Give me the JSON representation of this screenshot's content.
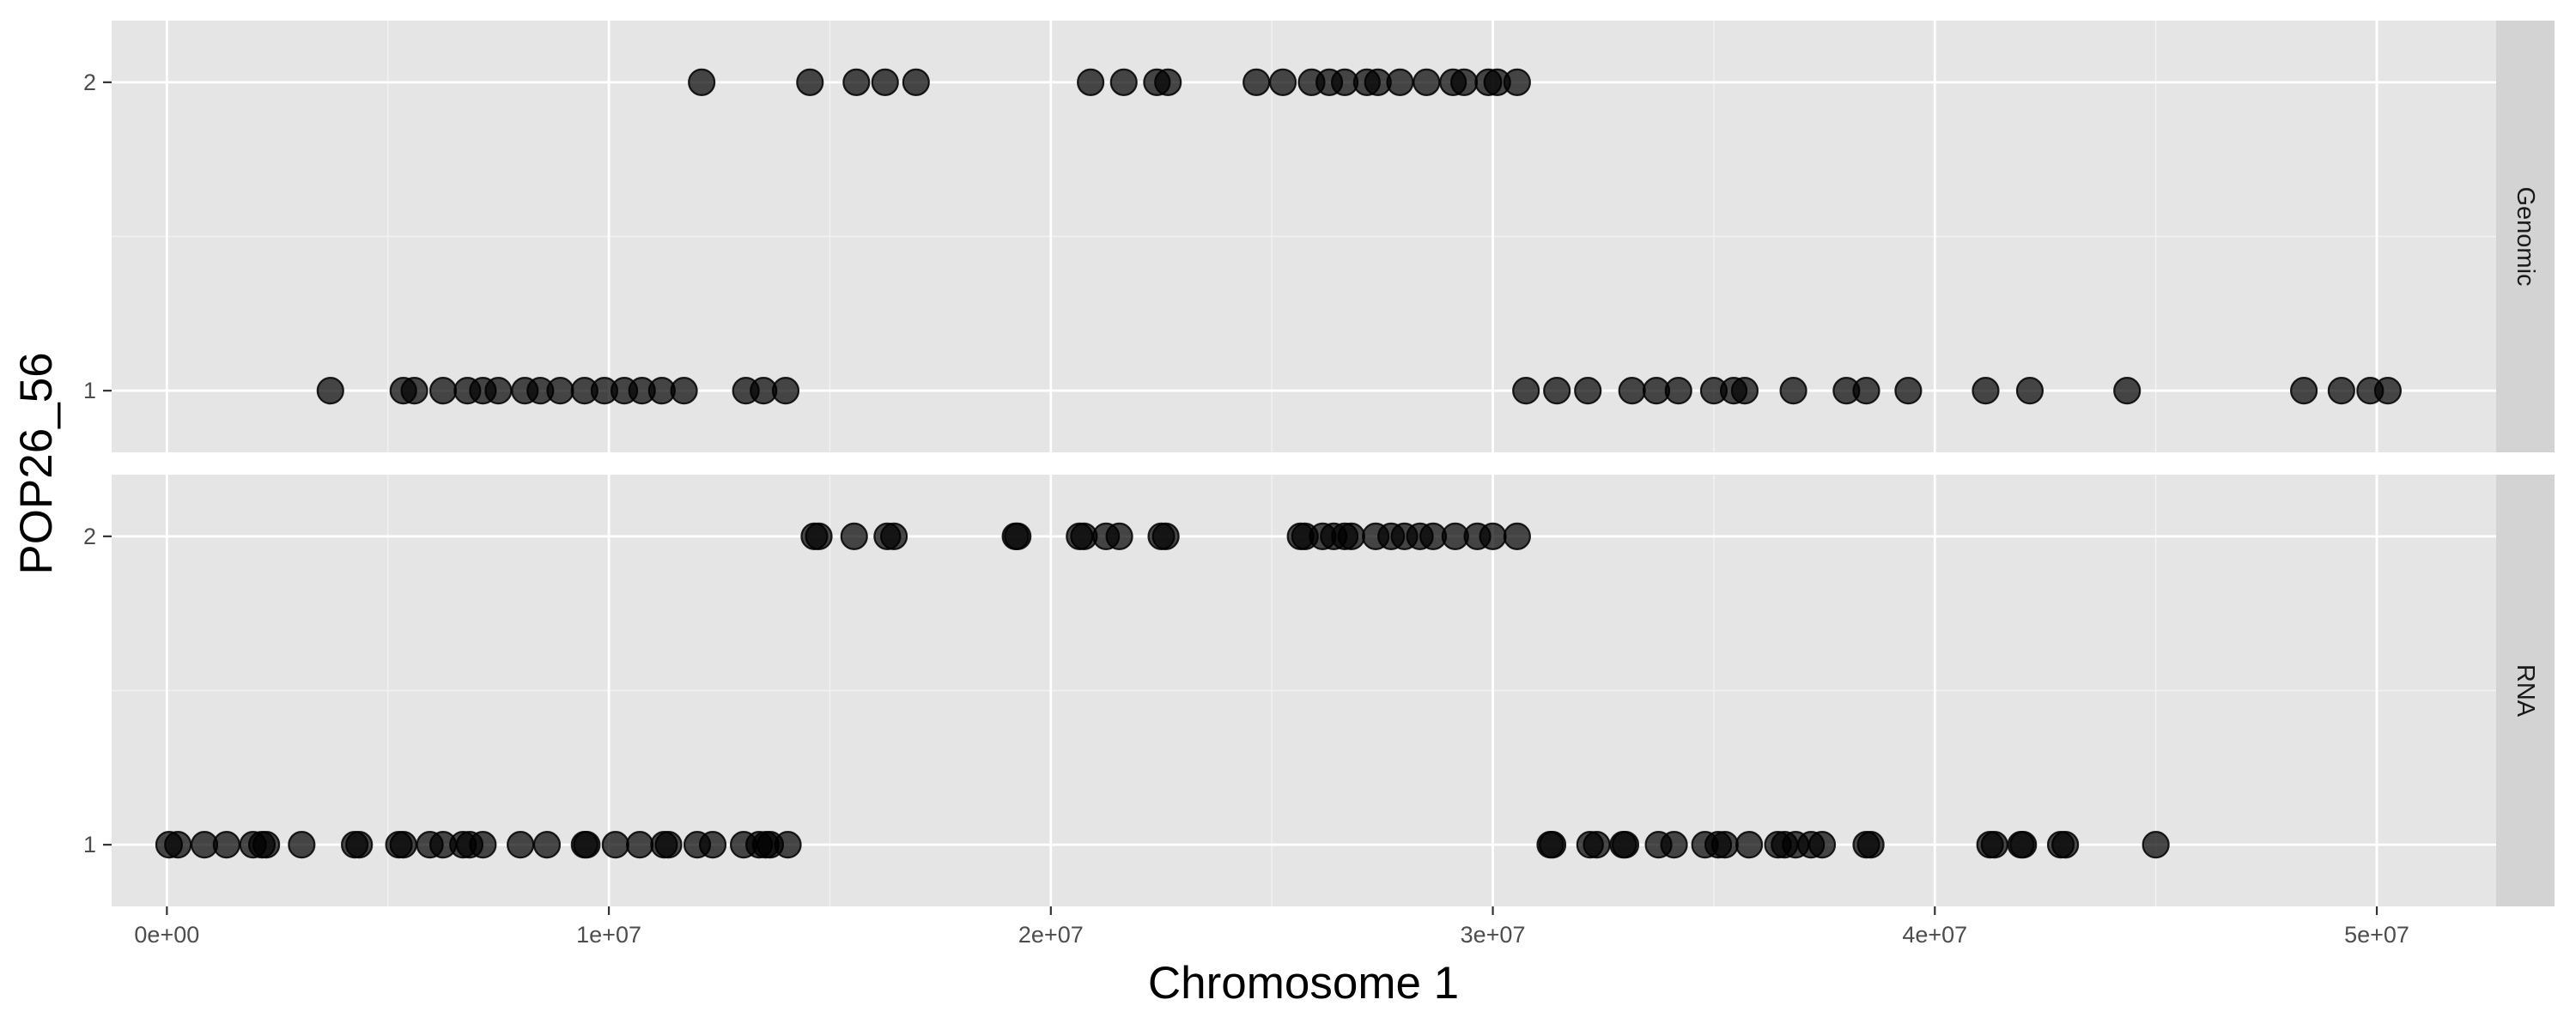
{
  "chart_data": {
    "type": "scatter",
    "xlabel": "Chromosome 1",
    "ylabel": "POP26_56",
    "xlim": [
      -1250000,
      52700000
    ],
    "ylim": [
      0.8,
      2.2
    ],
    "x_ticks": [
      0,
      10000000,
      20000000,
      30000000,
      40000000,
      50000000
    ],
    "x_tick_labels": [
      "0e+00",
      "1e+07",
      "2e+07",
      "3e+07",
      "4e+07",
      "5e+07"
    ],
    "y_ticks": [
      1,
      2
    ],
    "y_tick_labels": [
      "1",
      "2"
    ],
    "grid": true,
    "facets": [
      {
        "label": "Genomic",
        "points": [
          [
            12100000,
            2
          ],
          [
            14550000,
            2
          ],
          [
            15600000,
            2
          ],
          [
            16250000,
            2
          ],
          [
            16950000,
            2
          ],
          [
            20900000,
            2
          ],
          [
            21650000,
            2
          ],
          [
            22400000,
            2
          ],
          [
            22650000,
            2
          ],
          [
            24650000,
            2
          ],
          [
            25250000,
            2
          ],
          [
            25900000,
            2
          ],
          [
            26300000,
            2
          ],
          [
            26650000,
            2
          ],
          [
            27150000,
            2
          ],
          [
            27400000,
            2
          ],
          [
            27900000,
            2
          ],
          [
            28500000,
            2
          ],
          [
            29100000,
            2
          ],
          [
            29350000,
            2
          ],
          [
            29900000,
            2
          ],
          [
            30100000,
            2
          ],
          [
            30550000,
            2
          ],
          [
            3700000,
            1
          ],
          [
            5350000,
            1
          ],
          [
            5600000,
            1
          ],
          [
            6250000,
            1
          ],
          [
            6800000,
            1
          ],
          [
            7150000,
            1
          ],
          [
            7500000,
            1
          ],
          [
            8100000,
            1
          ],
          [
            8450000,
            1
          ],
          [
            8900000,
            1
          ],
          [
            9450000,
            1
          ],
          [
            9900000,
            1
          ],
          [
            10350000,
            1
          ],
          [
            10750000,
            1
          ],
          [
            11200000,
            1
          ],
          [
            11700000,
            1
          ],
          [
            13100000,
            1
          ],
          [
            13500000,
            1
          ],
          [
            14000000,
            1
          ],
          [
            30750000,
            1
          ],
          [
            31450000,
            1
          ],
          [
            32150000,
            1
          ],
          [
            33150000,
            1
          ],
          [
            33700000,
            1
          ],
          [
            34200000,
            1
          ],
          [
            35000000,
            1
          ],
          [
            35450000,
            1
          ],
          [
            35700000,
            1
          ],
          [
            36800000,
            1
          ],
          [
            38000000,
            1
          ],
          [
            38450000,
            1
          ],
          [
            39400000,
            1
          ],
          [
            41150000,
            1
          ],
          [
            42150000,
            1
          ],
          [
            44350000,
            1
          ],
          [
            48350000,
            1
          ],
          [
            49200000,
            1
          ],
          [
            49850000,
            1
          ],
          [
            50250000,
            1
          ]
        ]
      },
      {
        "label": "RNA",
        "points": [
          [
            14650000,
            2
          ],
          [
            14750000,
            2
          ],
          [
            15550000,
            2
          ],
          [
            16300000,
            2
          ],
          [
            16450000,
            2
          ],
          [
            19200000,
            2
          ],
          [
            19250000,
            2
          ],
          [
            20650000,
            2
          ],
          [
            20750000,
            2
          ],
          [
            21250000,
            2
          ],
          [
            21550000,
            2
          ],
          [
            22500000,
            2
          ],
          [
            22600000,
            2
          ],
          [
            25650000,
            2
          ],
          [
            25750000,
            2
          ],
          [
            26150000,
            2
          ],
          [
            26400000,
            2
          ],
          [
            26650000,
            2
          ],
          [
            26800000,
            2
          ],
          [
            27350000,
            2
          ],
          [
            27700000,
            2
          ],
          [
            28000000,
            2
          ],
          [
            28350000,
            2
          ],
          [
            28650000,
            2
          ],
          [
            29150000,
            2
          ],
          [
            29650000,
            2
          ],
          [
            30000000,
            2
          ],
          [
            30550000,
            2
          ],
          [
            50000,
            1
          ],
          [
            250000,
            1
          ],
          [
            850000,
            1
          ],
          [
            1350000,
            1
          ],
          [
            1950000,
            1
          ],
          [
            2150000,
            1
          ],
          [
            2250000,
            1
          ],
          [
            3050000,
            1
          ],
          [
            4250000,
            1
          ],
          [
            4350000,
            1
          ],
          [
            5250000,
            1
          ],
          [
            5350000,
            1
          ],
          [
            5950000,
            1
          ],
          [
            6250000,
            1
          ],
          [
            6700000,
            1
          ],
          [
            6850000,
            1
          ],
          [
            7150000,
            1
          ],
          [
            8000000,
            1
          ],
          [
            8600000,
            1
          ],
          [
            9450000,
            1
          ],
          [
            9500000,
            1
          ],
          [
            10150000,
            1
          ],
          [
            10700000,
            1
          ],
          [
            11250000,
            1
          ],
          [
            11350000,
            1
          ],
          [
            12000000,
            1
          ],
          [
            12350000,
            1
          ],
          [
            13050000,
            1
          ],
          [
            13400000,
            1
          ],
          [
            13550000,
            1
          ],
          [
            13650000,
            1
          ],
          [
            14050000,
            1
          ],
          [
            31300000,
            1
          ],
          [
            31350000,
            1
          ],
          [
            32200000,
            1
          ],
          [
            32350000,
            1
          ],
          [
            32950000,
            1
          ],
          [
            33000000,
            1
          ],
          [
            33750000,
            1
          ],
          [
            34100000,
            1
          ],
          [
            34800000,
            1
          ],
          [
            35100000,
            1
          ],
          [
            35250000,
            1
          ],
          [
            35800000,
            1
          ],
          [
            36450000,
            1
          ],
          [
            36600000,
            1
          ],
          [
            36850000,
            1
          ],
          [
            37200000,
            1
          ],
          [
            37450000,
            1
          ],
          [
            38450000,
            1
          ],
          [
            38550000,
            1
          ],
          [
            41250000,
            1
          ],
          [
            41350000,
            1
          ],
          [
            41950000,
            1
          ],
          [
            42000000,
            1
          ],
          [
            42850000,
            1
          ],
          [
            42950000,
            1
          ],
          [
            45000000,
            1
          ]
        ]
      }
    ]
  }
}
